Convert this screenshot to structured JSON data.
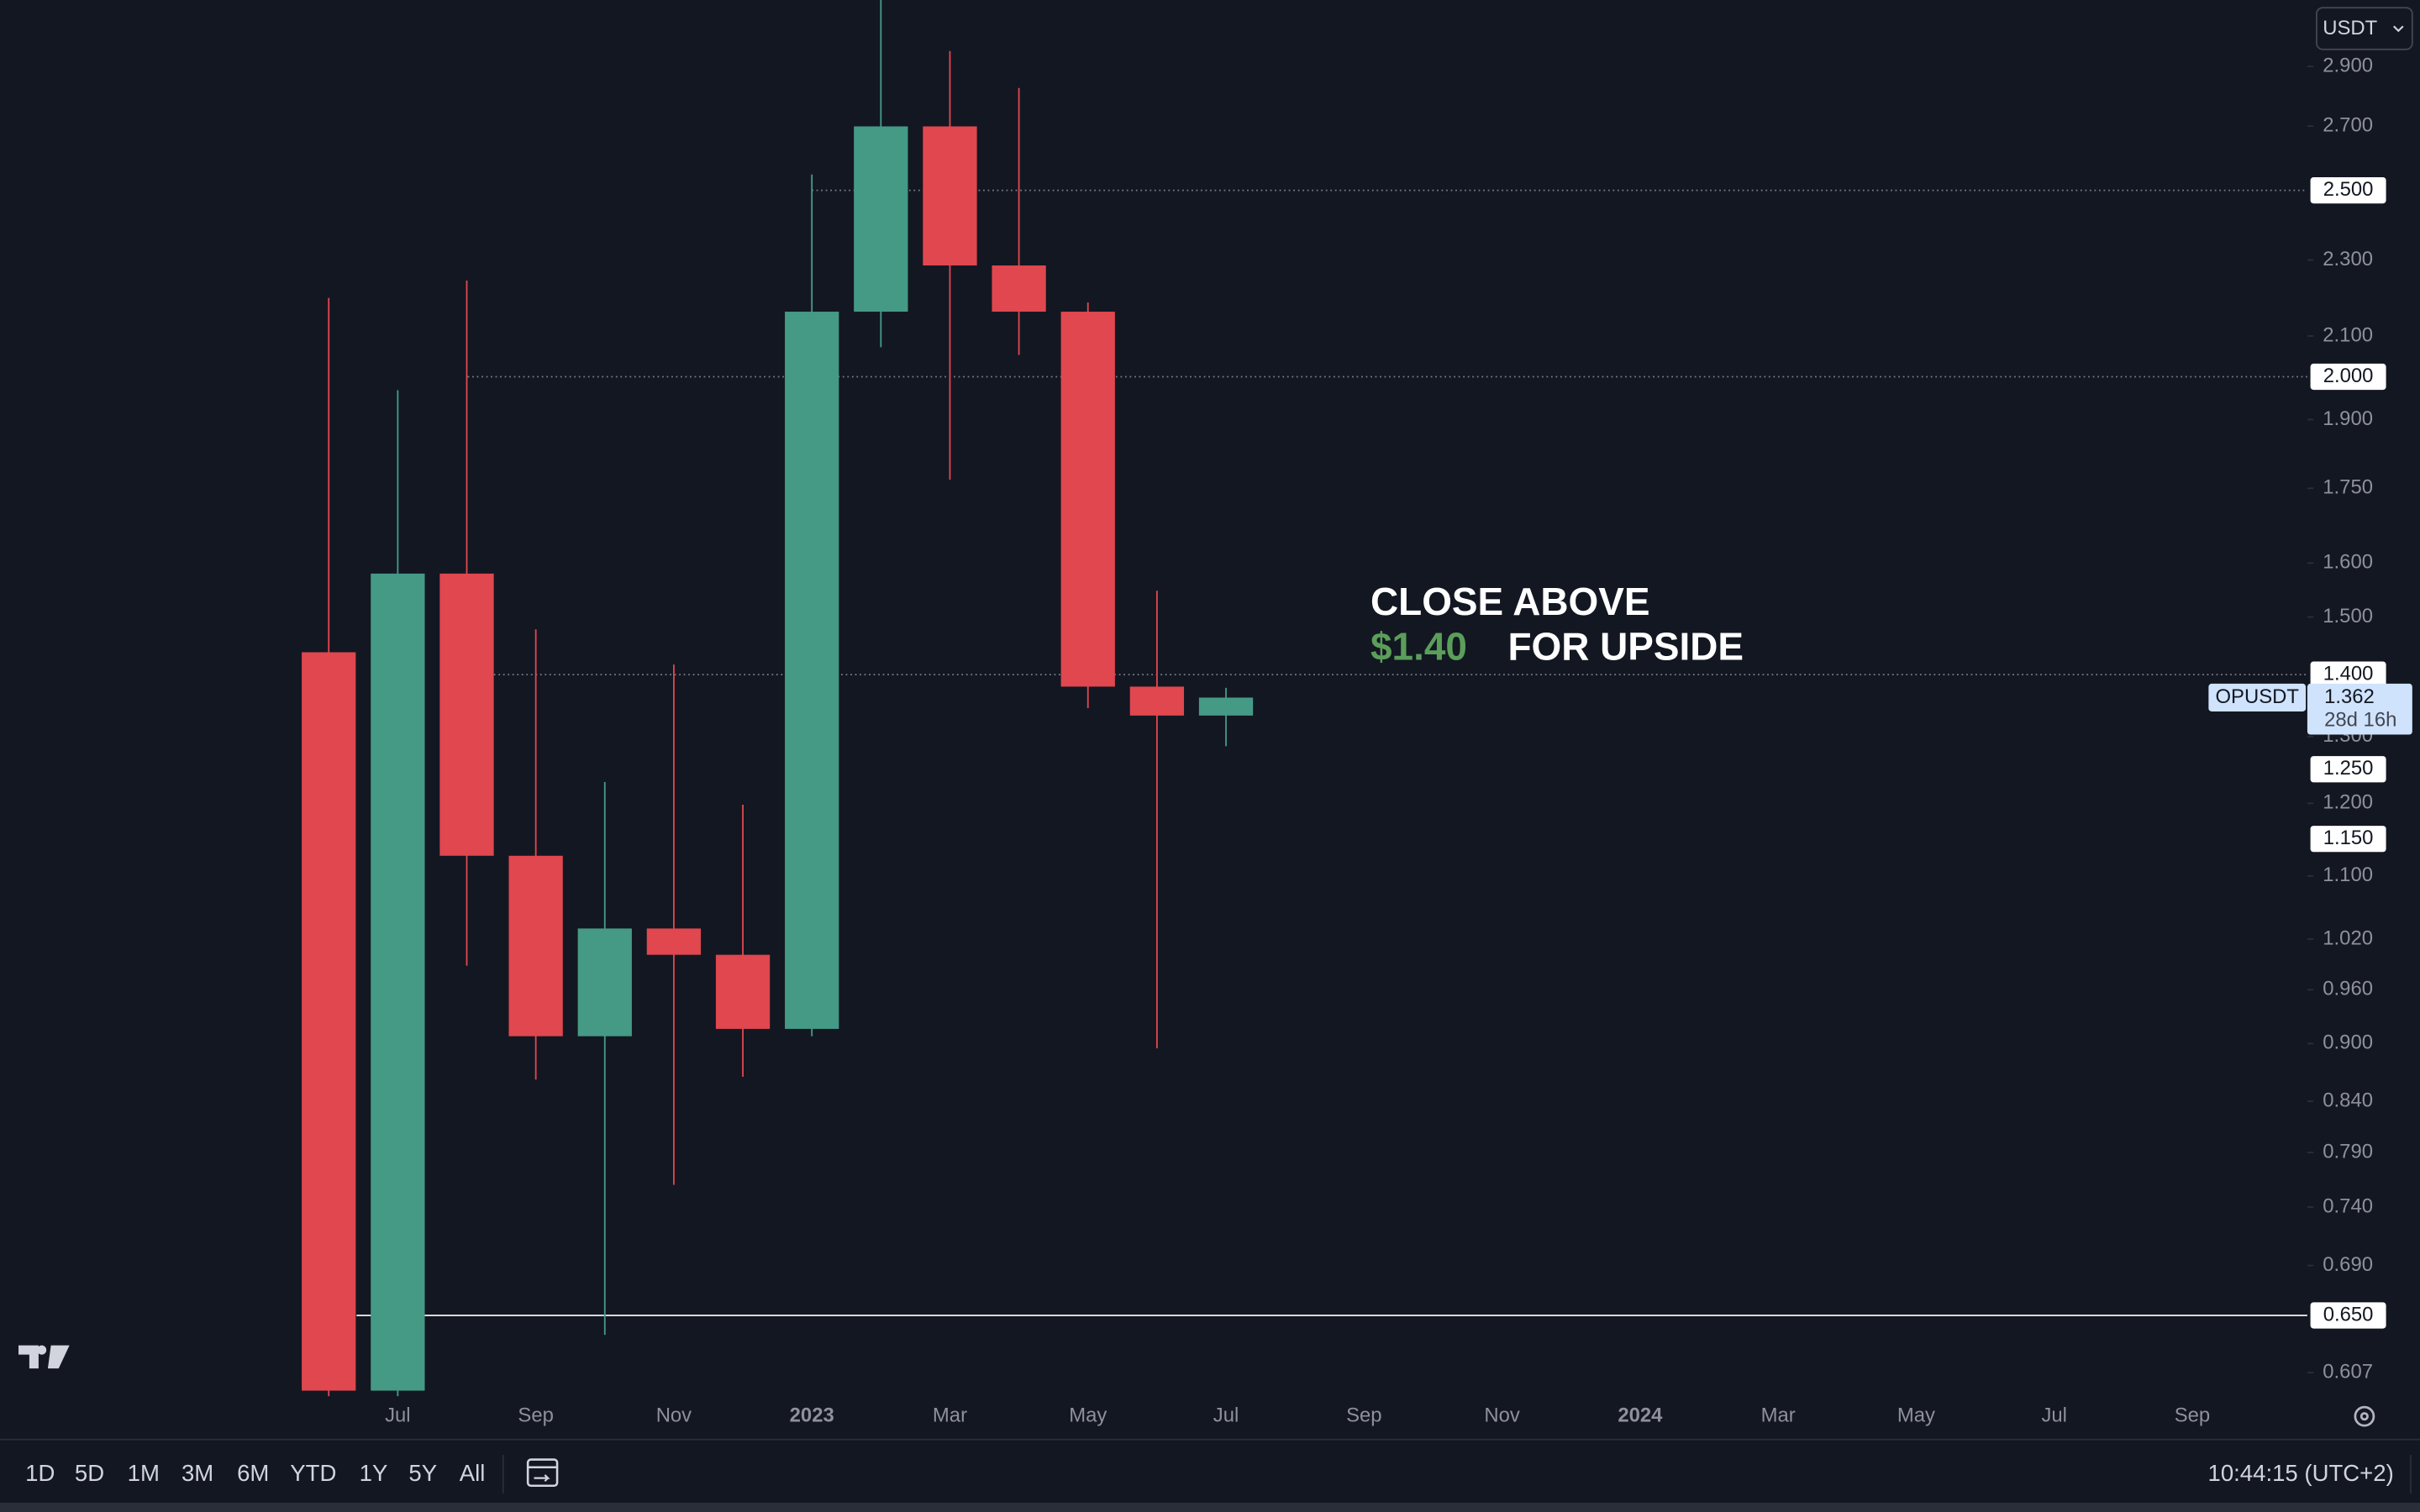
{
  "chart_data": {
    "type": "candlestick",
    "currency": "USDT",
    "categories": [
      null,
      "Jul",
      null,
      "Sep",
      null,
      "Nov",
      null,
      "2023",
      null,
      "Mar",
      null,
      "May",
      null,
      "Jul",
      null,
      "Sep",
      null,
      "Nov",
      null,
      "2024",
      null,
      "Mar",
      null,
      "May",
      null,
      "Jul",
      null,
      "Sep"
    ],
    "open": [
      1.438,
      0.594,
      1.58,
      1.127,
      0.908,
      1.033,
      1.001,
      0.916,
      2.162,
      2.699,
      2.285,
      2.162,
      1.38,
      1.333,
      null,
      null,
      null,
      null,
      null,
      null,
      null,
      null,
      null,
      null,
      null,
      null,
      null,
      null
    ],
    "high": [
      2.198,
      1.968,
      2.244,
      1.478,
      1.231,
      1.417,
      1.198,
      2.548,
      3.2,
      2.954,
      2.826,
      2.186,
      1.548,
      1.378,
      null,
      null,
      null,
      null,
      null,
      null,
      null,
      null,
      null,
      null,
      null,
      null,
      null,
      null
    ],
    "low": [
      0.59,
      0.59,
      0.988,
      0.862,
      0.635,
      0.76,
      0.865,
      0.908,
      2.072,
      1.768,
      2.053,
      1.345,
      0.895,
      1.285,
      null,
      null,
      null,
      null,
      null,
      null,
      null,
      null,
      null,
      null,
      null,
      null,
      null,
      null
    ],
    "close": [
      0.594,
      1.58,
      1.127,
      0.908,
      1.033,
      1.001,
      0.916,
      2.162,
      2.699,
      2.285,
      2.162,
      1.38,
      1.333,
      1.362,
      null,
      null,
      null,
      null,
      null,
      null,
      null,
      null,
      null,
      null,
      null,
      null,
      null,
      null
    ],
    "up_color": "#459a85",
    "down_color": "#e0474f",
    "log_scale": true,
    "ylim": [
      0.59,
      3.14
    ],
    "yticks": [
      {
        "value": 2.9,
        "label": "2.900"
      },
      {
        "value": 2.7,
        "label": "2.700"
      },
      {
        "value": 2.3,
        "label": "2.300"
      },
      {
        "value": 2.1,
        "label": "2.100"
      },
      {
        "value": 1.9,
        "label": "1.900"
      },
      {
        "value": 1.75,
        "label": "1.750"
      },
      {
        "value": 1.6,
        "label": "1.600"
      },
      {
        "value": 1.5,
        "label": "1.500"
      },
      {
        "value": 1.3,
        "label": "1.300"
      },
      {
        "value": 1.2,
        "label": "1.200"
      },
      {
        "value": 1.1,
        "label": "1.100"
      },
      {
        "value": 1.02,
        "label": "1.020"
      },
      {
        "value": 0.96,
        "label": "0.960"
      },
      {
        "value": 0.9,
        "label": "0.900"
      },
      {
        "value": 0.84,
        "label": "0.840"
      },
      {
        "value": 0.79,
        "label": "0.790"
      },
      {
        "value": 0.74,
        "label": "0.740"
      },
      {
        "value": 0.69,
        "label": "0.690"
      },
      {
        "value": 0.607,
        "label": "0.607"
      }
    ],
    "levels": [
      {
        "value": 2.5,
        "label": "2.500",
        "line": "dotted"
      },
      {
        "value": 2.0,
        "label": "2.000",
        "line": "dotted"
      },
      {
        "value": 1.4,
        "label": "1.400",
        "line": "dotted"
      },
      {
        "value": 1.25,
        "label": "1.250"
      },
      {
        "value": 1.15,
        "label": "1.150"
      },
      {
        "value": 0.65,
        "label": "0.650",
        "line": "solid"
      }
    ],
    "last_price": {
      "symbol": "OPUSDT",
      "value": 1.362,
      "countdown": "28d 16h"
    },
    "annotation": {
      "line1": "CLOSE ABOVE",
      "price": "$1.40",
      "line2": "FOR UPSIDE",
      "price_color": "#5a9e5a"
    },
    "timeframes": [
      "1D",
      "5D",
      "1M",
      "3M",
      "6M",
      "YTD",
      "1Y",
      "5Y",
      "All"
    ],
    "clock": "10:44:15 (UTC+2)"
  }
}
